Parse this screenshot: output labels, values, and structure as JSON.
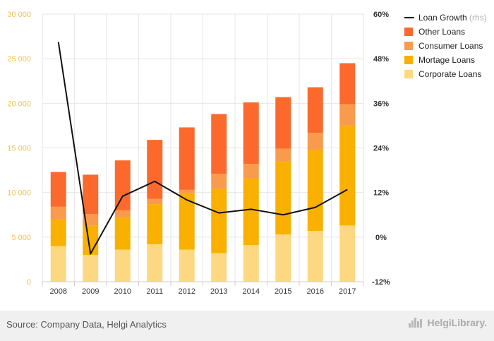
{
  "chart_data": {
    "type": "bar",
    "stacked": true,
    "categories": [
      "2008",
      "2009",
      "2010",
      "2011",
      "2012",
      "2013",
      "2014",
      "2015",
      "2016",
      "2017"
    ],
    "series": [
      {
        "name": "Corporate Loans",
        "color": "#fdd882",
        "values": [
          4000,
          3000,
          3600,
          4200,
          3600,
          3200,
          4100,
          5300,
          5700,
          6300
        ]
      },
      {
        "name": "Mortage Loans",
        "color": "#f9b000",
        "values": [
          2900,
          3300,
          3600,
          4500,
          6300,
          7200,
          7500,
          8200,
          9100,
          11200
        ]
      },
      {
        "name": "Consumer Loans",
        "color": "#f99b4d",
        "values": [
          1500,
          1300,
          800,
          600,
          400,
          1700,
          1600,
          1400,
          1900,
          2400
        ]
      },
      {
        "name": "Other Loans",
        "color": "#fb6a2c",
        "values": [
          3900,
          4400,
          5600,
          6600,
          7000,
          6700,
          6900,
          5800,
          5100,
          4600
        ]
      }
    ],
    "line_series": {
      "name": "Loan Growth",
      "suffix": "(rhs)",
      "color": "#111111",
      "axis": "right",
      "values": [
        52.5,
        -4.5,
        11.0,
        15.0,
        10.0,
        6.5,
        7.5,
        6.0,
        8.0,
        12.8
      ]
    },
    "y_left": {
      "ylim": [
        0,
        30000
      ],
      "ticks": [
        0,
        5000,
        10000,
        15000,
        20000,
        25000,
        30000
      ],
      "tick_labels": [
        "0",
        "5 000",
        "10 000",
        "15 000",
        "20 000",
        "25 000",
        "30 000"
      ]
    },
    "y_right": {
      "ylim": [
        -12,
        60
      ],
      "ticks": [
        -12,
        0,
        12,
        24,
        36,
        48,
        60
      ],
      "tick_labels": [
        "-12%",
        "0%",
        "12%",
        "24%",
        "36%",
        "48%",
        "60%"
      ]
    },
    "legend": {
      "position": "top-right",
      "entries": [
        "Loan Growth",
        "Other Loans",
        "Consumer Loans",
        "Mortage Loans",
        "Corporate Loans"
      ]
    },
    "grid": true,
    "title": "",
    "xlabel": "",
    "ylabel": ""
  },
  "footer": {
    "source": "Source: Company Data, Helgi Analytics",
    "logo_text": "HelgiLibrary."
  },
  "colors": {
    "axis_left_text": "#f2c14e",
    "grid": "#e6e6e6"
  }
}
